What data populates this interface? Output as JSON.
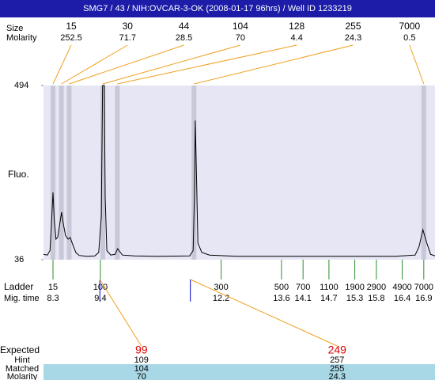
{
  "chart_data": {
    "type": "line",
    "title": "SMG7 / 43 / NIH:OVCAR-3-OK (2008-01-17 96hrs) / Well ID 1233219",
    "ylabel": "Fluo.",
    "ylim": [
      36,
      494
    ],
    "yticks": [
      36,
      494
    ],
    "xlim": [
      8.08,
      17.16
    ],
    "color": "#000000",
    "x": [
      8.08,
      8.17,
      8.23,
      8.26,
      8.3,
      8.33,
      8.37,
      8.41,
      8.47,
      8.5,
      8.54,
      8.59,
      8.65,
      8.7,
      8.76,
      8.83,
      8.91,
      9.09,
      9.27,
      9.36,
      9.42,
      9.45,
      9.49,
      9.51,
      9.55,
      9.64,
      9.74,
      9.8,
      9.83,
      9.91,
      10.19,
      10.74,
      11.47,
      11.55,
      11.58,
      11.6,
      11.62,
      11.66,
      11.75,
      11.93,
      12.57,
      14.41,
      16.24,
      16.7,
      16.79,
      16.88,
      16.97,
      17.06,
      17.16
    ],
    "values": [
      50,
      48,
      60,
      120,
      213,
      140,
      90,
      95,
      140,
      161,
      130,
      100,
      90,
      94,
      75,
      55,
      47,
      45,
      46,
      55,
      150,
      494,
      494,
      200,
      60,
      48,
      50,
      65,
      60,
      48,
      46,
      45,
      46,
      60,
      200,
      402,
      300,
      80,
      55,
      48,
      45,
      45,
      45,
      48,
      70,
      115,
      80,
      50,
      46
    ],
    "peaks": {
      "size_label": "Size",
      "molarity_label": "Molarity",
      "sizes": [
        15,
        30,
        44,
        104,
        128,
        255,
        7000
      ],
      "molarity": [
        252.5,
        71.7,
        28.5,
        70,
        4.4,
        24.3,
        0.5
      ]
    },
    "ladder": {
      "label": "Ladder",
      "time_label": "Mig. time",
      "sizes": [
        15,
        100,
        300,
        500,
        700,
        1100,
        1900,
        2900,
        4900,
        7000
      ],
      "times": [
        8.3,
        9.4,
        12.2,
        13.6,
        14.1,
        14.7,
        15.3,
        15.8,
        16.4,
        16.9
      ]
    },
    "fit": {
      "expected_label": "Expected",
      "hint_label": "Hint",
      "matched_label": "Matched",
      "molarity_label": "Molarity",
      "expected": [
        99,
        249
      ],
      "hint": [
        109,
        257
      ],
      "matched": [
        104,
        255
      ],
      "molarity": [
        70,
        24.3
      ]
    }
  }
}
